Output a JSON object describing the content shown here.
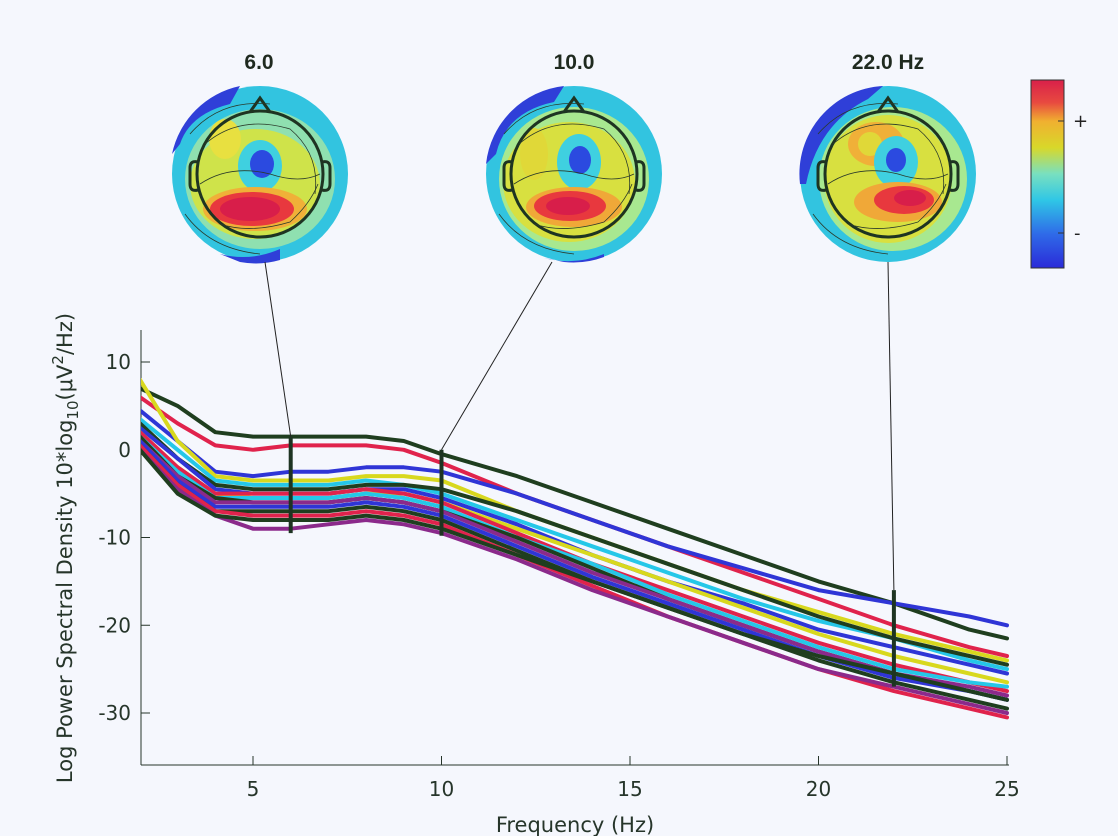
{
  "chart_data": {
    "type": "line",
    "title": "",
    "xlabel": "Frequency (Hz)",
    "ylabel_parts": {
      "prefix": "Log Power Spectral Density 10*log",
      "sub": "10",
      "mid": "(μV",
      "sup": "2",
      "suffix": "/Hz)"
    },
    "xlim": [
      2,
      25
    ],
    "ylim": [
      -36,
      14
    ],
    "xticks": [
      5,
      10,
      15,
      20,
      25
    ],
    "xtick_labels": [
      "5",
      "10",
      "15",
      "20",
      "25"
    ],
    "yticks": [
      10,
      0,
      -10,
      -20,
      -30
    ],
    "ytick_labels": [
      "10",
      "0",
      "-10",
      "-20",
      "-30"
    ],
    "grid": false,
    "x": [
      2,
      3,
      4,
      5,
      6,
      7,
      8,
      9,
      10,
      12,
      14,
      16,
      18,
      20,
      22,
      24,
      25
    ],
    "series": [
      {
        "color": "#e0234c",
        "values": [
          6,
          3,
          0.5,
          0,
          0.5,
          0.5,
          0.5,
          0,
          -1.5,
          -5,
          -8,
          -11,
          -14,
          -17,
          -20,
          -22.5,
          -23.5
        ]
      },
      {
        "color": "#1f3e1f",
        "values": [
          7,
          5,
          2,
          1.5,
          1.5,
          1.5,
          1.5,
          1,
          -0.5,
          -3,
          -6,
          -9,
          -12,
          -15,
          -17.5,
          -20.5,
          -21.5
        ]
      },
      {
        "color": "#2f35d6",
        "values": [
          4.5,
          1,
          -2.5,
          -3,
          -2.5,
          -2.5,
          -2,
          -2,
          -2.5,
          -5,
          -8,
          -11,
          -13.5,
          -16,
          -17.5,
          -19,
          -20
        ]
      },
      {
        "color": "#d8d81e",
        "values": [
          8,
          1,
          -3,
          -3.5,
          -3.5,
          -3.5,
          -3,
          -3,
          -3.5,
          -7,
          -10,
          -13,
          -16,
          -18.5,
          -21,
          -23,
          -24
        ]
      },
      {
        "color": "#25c7e8",
        "values": [
          3.5,
          0,
          -3.5,
          -4,
          -4,
          -4,
          -3.5,
          -4,
          -5,
          -8,
          -11,
          -14,
          -17,
          -19.5,
          -21.5,
          -24,
          -25
        ]
      },
      {
        "color": "#1f3e1f",
        "values": [
          3,
          -1,
          -4,
          -4.5,
          -4.5,
          -4.5,
          -4,
          -4,
          -4.5,
          -7,
          -10,
          -13,
          -16,
          -19,
          -21.5,
          -23.5,
          -24.5
        ]
      },
      {
        "color": "#2f35d6",
        "values": [
          2.5,
          -1,
          -4.5,
          -5,
          -5,
          -5,
          -4.5,
          -4.5,
          -5.5,
          -8.5,
          -12,
          -15,
          -17.5,
          -20.5,
          -22.5,
          -24.5,
          -25.5
        ]
      },
      {
        "color": "#d8d81e",
        "values": [
          2,
          -2,
          -5,
          -5.5,
          -5.5,
          -5.5,
          -5,
          -5,
          -6,
          -9,
          -12,
          -15,
          -18,
          -21,
          -23.5,
          -25.5,
          -26.5
        ]
      },
      {
        "color": "#e0234c",
        "values": [
          2,
          -2,
          -5,
          -5,
          -5,
          -5,
          -4.5,
          -5,
          -6,
          -9.5,
          -13,
          -16,
          -19,
          -22,
          -24.5,
          -26.5,
          -27.5
        ]
      },
      {
        "color": "#25c7e8",
        "values": [
          1.5,
          -2.5,
          -5.5,
          -5.5,
          -5.5,
          -5.5,
          -5,
          -5.5,
          -6.5,
          -10,
          -13,
          -16.5,
          -19.5,
          -22.5,
          -25,
          -26.5,
          -27
        ]
      },
      {
        "color": "#1f3e1f",
        "values": [
          1.5,
          -3,
          -5.5,
          -6,
          -6,
          -6,
          -5.5,
          -6,
          -7,
          -10,
          -13.5,
          -17,
          -20,
          -23,
          -25.5,
          -27.5,
          -28.5
        ]
      },
      {
        "color": "#8b2a8b",
        "values": [
          1,
          -3,
          -6,
          -6,
          -6,
          -6,
          -5.5,
          -6,
          -7,
          -10.5,
          -14,
          -17,
          -20,
          -23,
          -25.5,
          -27,
          -28
        ]
      },
      {
        "color": "#2f35d6",
        "values": [
          1,
          -3.5,
          -6.5,
          -6.5,
          -6.5,
          -6.5,
          -6,
          -6.5,
          -7.5,
          -11,
          -14.5,
          -17.5,
          -20.5,
          -23.5,
          -26,
          -27.5,
          -28.5
        ]
      },
      {
        "color": "#1f3e1f",
        "values": [
          0.5,
          -4,
          -7,
          -7,
          -7,
          -7,
          -6.5,
          -7,
          -8,
          -11.5,
          -15,
          -18,
          -21,
          -24,
          -26.5,
          -28.5,
          -29.5
        ]
      },
      {
        "color": "#e0234c",
        "values": [
          0.5,
          -4,
          -7,
          -7.5,
          -7.5,
          -7.5,
          -7,
          -7.5,
          -8.5,
          -12,
          -15.5,
          -19,
          -22,
          -25,
          -27.5,
          -29.5,
          -30.5
        ]
      },
      {
        "color": "#8b2a8b",
        "values": [
          0,
          -4.5,
          -7.5,
          -9,
          -9,
          -8.5,
          -8,
          -8.5,
          -9.5,
          -12.5,
          -16,
          -19,
          -22,
          -25,
          -27,
          -29,
          -30
        ]
      },
      {
        "color": "#1f3e1f",
        "values": [
          0,
          -5,
          -7.5,
          -8,
          -8,
          -8,
          -7.5,
          -8,
          -9,
          -12,
          -15,
          -18,
          -21,
          -23.5,
          -25.5,
          -27.5,
          -28.5
        ]
      }
    ],
    "markers": [
      {
        "freq": 6.0,
        "ymin": -9.5,
        "ymax": 1.5,
        "label": "6.0"
      },
      {
        "freq": 10.0,
        "ymin": -9.8,
        "ymax": 0,
        "label": "10.0"
      },
      {
        "freq": 22.0,
        "ymin": -27,
        "ymax": -16,
        "label": "22.0 Hz"
      }
    ],
    "colorbar": {
      "plus_label": "+",
      "minus_label": "-",
      "colors": [
        "#2b2bd8",
        "#2f6ae8",
        "#2fc6e6",
        "#78e0c0",
        "#d8d82a",
        "#f0b030",
        "#e84a40",
        "#d8204a"
      ]
    }
  }
}
